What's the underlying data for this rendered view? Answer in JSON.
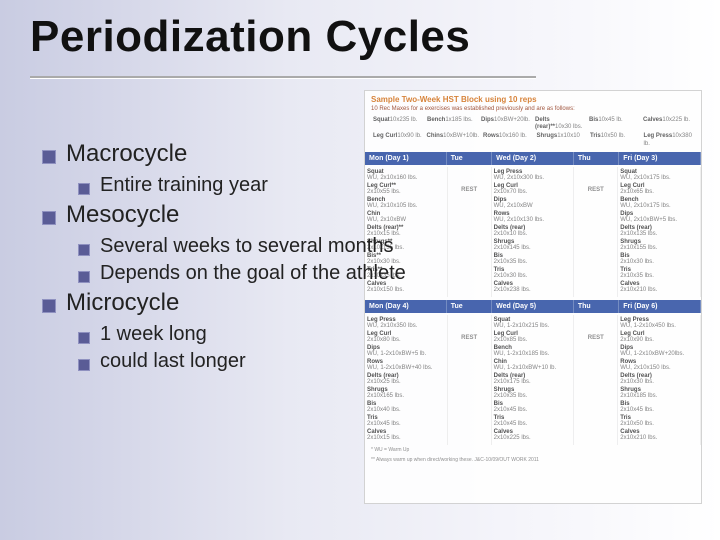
{
  "title": "Periodization Cycles",
  "bullets": {
    "macrocycle": {
      "label": "Macrocycle",
      "sub1": "Entire training year"
    },
    "mesocycle": {
      "label": "Mesocycle",
      "sub1": "Several weeks to several months",
      "sub2": "Depends on the goal of the athlete"
    },
    "microcycle": {
      "label": "Microcycle",
      "sub1": "1 week long",
      "sub2": "could last longer"
    }
  },
  "schedule": {
    "title_text": "Sample Two-Week HST Block using 10 reps",
    "subtitle": "10 Rec Maxes for a exercises was established previously and are as follows:",
    "colors": {
      "header_bg": "#3a5aa8",
      "header_text": "#ffffff",
      "title_color": "#d57a2a",
      "subtitle_color": "#9a4a30",
      "body_text": "#7a7a7a",
      "label_text": "#444444",
      "border": "#d0d0d0",
      "cell_border": "#eeeeee"
    },
    "fonts": {
      "title_pt": 8,
      "body_pt": 6,
      "header_pt": 7
    },
    "maxes_row1": [
      {
        "name": "Squat",
        "val": "10x235 lb."
      },
      {
        "name": "Bench",
        "val": "1x185 lbs."
      },
      {
        "name": "Dips",
        "val": "10xBW+20lb."
      },
      {
        "name": "Delts (rear)**",
        "val": "10x30 lbs."
      },
      {
        "name": "Bis",
        "val": "10x45 lb."
      },
      {
        "name": "Calves",
        "val": "10x225 lb."
      }
    ],
    "maxes_row2": [
      {
        "name": "Leg Curl",
        "val": "10x90 lb."
      },
      {
        "name": "Chins",
        "val": "10xBW+10lb."
      },
      {
        "name": "Rows",
        "val": "10x160 lb."
      },
      {
        "name": "Shrugs",
        "val": "1x10x10"
      },
      {
        "name": "Tris",
        "val": "10x50 lb."
      },
      {
        "name": "Leg Press",
        "val": "10x380 lb."
      }
    ],
    "week1_days": [
      {
        "label": "Mon (Day 1)"
      },
      {
        "label": "Tue",
        "rest": true
      },
      {
        "label": "Wed (Day 2)"
      },
      {
        "label": "Thu",
        "rest": true
      },
      {
        "label": "Fri (Day 3)"
      }
    ],
    "week2_days": [
      {
        "label": "Mon (Day 4)"
      },
      {
        "label": "Tue",
        "rest": true
      },
      {
        "label": "Wed (Day 5)"
      },
      {
        "label": "Thu",
        "rest": true
      },
      {
        "label": "Fri (Day 6)"
      }
    ],
    "week1_cols": [
      [
        {
          "n": "Squat",
          "v": "WU, 2x10x160 lbs."
        },
        {
          "n": "Leg Curl**",
          "v": "2x10x55 lbs."
        },
        {
          "n": "Bench",
          "v": "WU, 2x10x105 lbs."
        },
        {
          "n": "Chin",
          "v": "WU, 2x10xBW"
        },
        {
          "n": "Delts (rear)**",
          "v": "2x10x15 lbs."
        },
        {
          "n": "Shrugs**",
          "v": "2x10x135 lbs."
        },
        {
          "n": "Bis**",
          "v": "2x10x30 lbs."
        },
        {
          "n": "Tris**",
          "v": "2x10x35 lbs."
        },
        {
          "n": "Calves",
          "v": "2x10x150 lbs."
        }
      ],
      [
        {
          "n": "Leg Press",
          "v": "WU, 2x10x300 lbs."
        },
        {
          "n": "Leg Curl",
          "v": "2x10x70 lbs."
        },
        {
          "n": "Dips",
          "v": "WU, 2x10xBW"
        },
        {
          "n": "Rows",
          "v": "WU, 2x10x130 lbs."
        },
        {
          "n": "Delts (rear)",
          "v": "2x10x10 lbs."
        },
        {
          "n": "Shrugs",
          "v": "2x10x145 lbs."
        },
        {
          "n": "Bis",
          "v": "2x10x35 lbs."
        },
        {
          "n": "Tris",
          "v": "2x10x30 lbs."
        },
        {
          "n": "Calves",
          "v": "2x10x238 lbs."
        }
      ],
      [
        {
          "n": "Squat",
          "v": "WU, 2x10x175 lbs."
        },
        {
          "n": "Leg Curl",
          "v": "2x10x65 lbs."
        },
        {
          "n": "Bench",
          "v": "WU, 2x10x175 lbs."
        },
        {
          "n": "Dips",
          "v": "WU, 2x10xBW+5 lbs."
        },
        {
          "n": "Delts (rear)",
          "v": "2x10x135 lbs."
        },
        {
          "n": "Shrugs",
          "v": "2x10x155 lbs."
        },
        {
          "n": "Bis",
          "v": "2x10x30 lbs."
        },
        {
          "n": "Tris",
          "v": "2x10x35 lbs."
        },
        {
          "n": "Calves",
          "v": "2x10x210 lbs."
        }
      ]
    ],
    "week2_cols": [
      [
        {
          "n": "Leg Press",
          "v": "WU, 2x10x350 lbs."
        },
        {
          "n": "Leg Curl",
          "v": "2x10x80 lbs."
        },
        {
          "n": "Dips",
          "v": "WU, 1-2x10xBW+5 lb."
        },
        {
          "n": "Rows",
          "v": "WU, 1-2x10xBW+40 lbs."
        },
        {
          "n": "Delts (rear)",
          "v": "2x10x25 lbs."
        },
        {
          "n": "Shrugs",
          "v": "2x10x165 lbs."
        },
        {
          "n": "Bis",
          "v": "2x10x40 lbs."
        },
        {
          "n": "Tris",
          "v": "2x10x45 lbs."
        },
        {
          "n": "Calves",
          "v": "2x10x15 lbs."
        }
      ],
      [
        {
          "n": "Squat",
          "v": "WU, 1-2x10x215 lbs."
        },
        {
          "n": "Leg Curl",
          "v": "2x10x85 lbs."
        },
        {
          "n": "Bench",
          "v": "WU, 1-2x10x185 lbs."
        },
        {
          "n": "Chin",
          "v": "WU, 1-2x10xBW+10 lb."
        },
        {
          "n": "Delts (rear)",
          "v": "2x10x175 lbs."
        },
        {
          "n": "Shrugs",
          "v": "2x10x35 lbs."
        },
        {
          "n": "Bis",
          "v": "2x10x45 lbs."
        },
        {
          "n": "Tris",
          "v": "2x10x45 lbs."
        },
        {
          "n": "Calves",
          "v": "2x10x225 lbs."
        }
      ],
      [
        {
          "n": "Leg Press",
          "v": "WU, 1-2x10x450 lbs."
        },
        {
          "n": "Leg Curl",
          "v": "2x10x90 lbs."
        },
        {
          "n": "Dips",
          "v": "WU, 1-2x10xBW+20lbs."
        },
        {
          "n": "Rows",
          "v": "WU, 2x10x150 lbs."
        },
        {
          "n": "Delts (rear)",
          "v": "2x10x30 lbs."
        },
        {
          "n": "Shrugs",
          "v": "2x10x185 lbs."
        },
        {
          "n": "Bis",
          "v": "2x10x45 lbs."
        },
        {
          "n": "Tris",
          "v": "2x10x50 lbs."
        },
        {
          "n": "Calves",
          "v": "2x10x210 lbs."
        }
      ]
    ],
    "rest_label": "REST",
    "footnote1": "* WU = Warm Up",
    "footnote2": "** Always warm up when direct/working these. J&C-10/09/OUT WORK 2011"
  }
}
